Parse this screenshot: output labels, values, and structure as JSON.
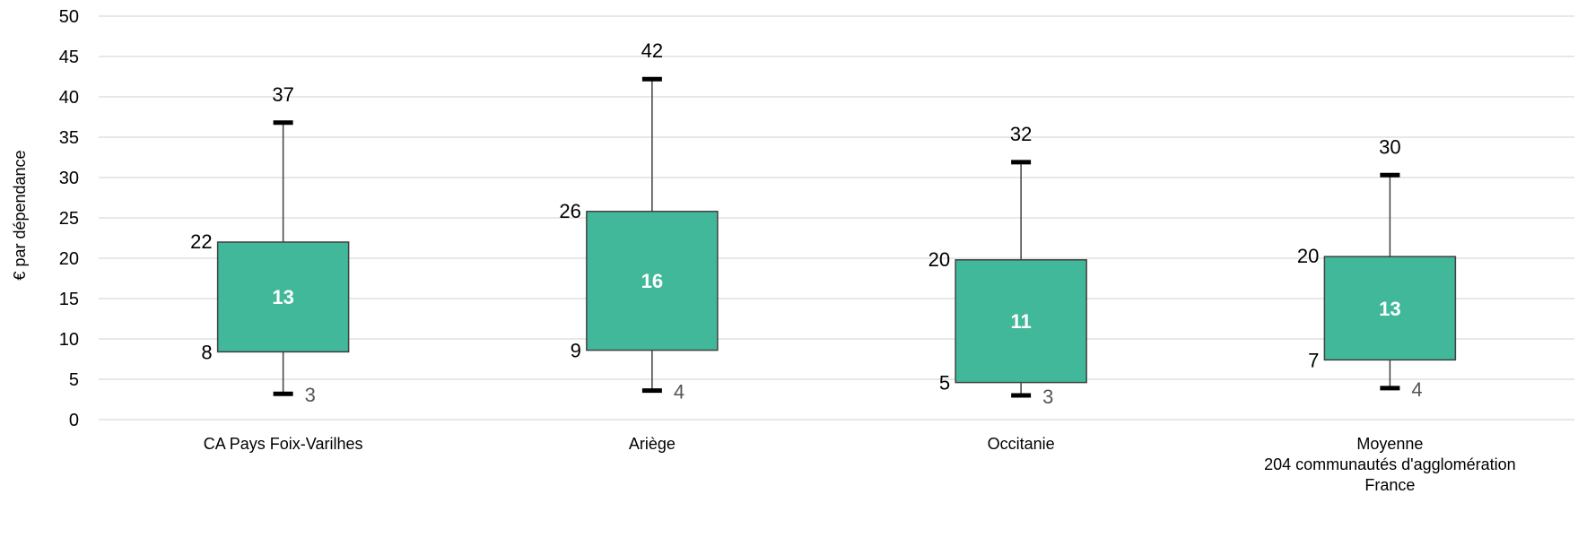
{
  "chart_data": {
    "type": "boxplot",
    "ylabel": "€  par dépendance",
    "ylim": [
      0,
      50
    ],
    "yticks": [
      0,
      5,
      10,
      15,
      20,
      25,
      30,
      35,
      40,
      45,
      50
    ],
    "grid": true,
    "box_color": "#41B89A",
    "categories": [
      {
        "lines": [
          "CA Pays Foix-Varilhes"
        ]
      },
      {
        "lines": [
          "Ariège"
        ]
      },
      {
        "lines": [
          "Occitanie"
        ]
      },
      {
        "lines": [
          "Moyenne",
          "204 communautés d'agglomération",
          "France"
        ]
      }
    ],
    "boxes": [
      {
        "min": 3.2,
        "q1": 8.4,
        "median": 13,
        "q3": 22,
        "max": 36.8,
        "labels": {
          "min": "3",
          "q1": "8",
          "median": "13",
          "q3": "22",
          "max": "37"
        }
      },
      {
        "min": 3.6,
        "q1": 8.6,
        "median": 16,
        "q3": 25.8,
        "max": 42.2,
        "labels": {
          "min": "4",
          "q1": "9",
          "median": "16",
          "q3": "26",
          "max": "42"
        }
      },
      {
        "min": 3.0,
        "q1": 4.6,
        "median": 11,
        "q3": 19.8,
        "max": 31.9,
        "labels": {
          "min": "3",
          "q1": "5",
          "median": "11",
          "q3": "20",
          "max": "32"
        }
      },
      {
        "min": 3.9,
        "q1": 7.4,
        "median": 13,
        "q3": 20.2,
        "max": 30.3,
        "labels": {
          "min": "4",
          "q1": "7",
          "median": "13",
          "q3": "20",
          "max": "30"
        }
      }
    ]
  }
}
